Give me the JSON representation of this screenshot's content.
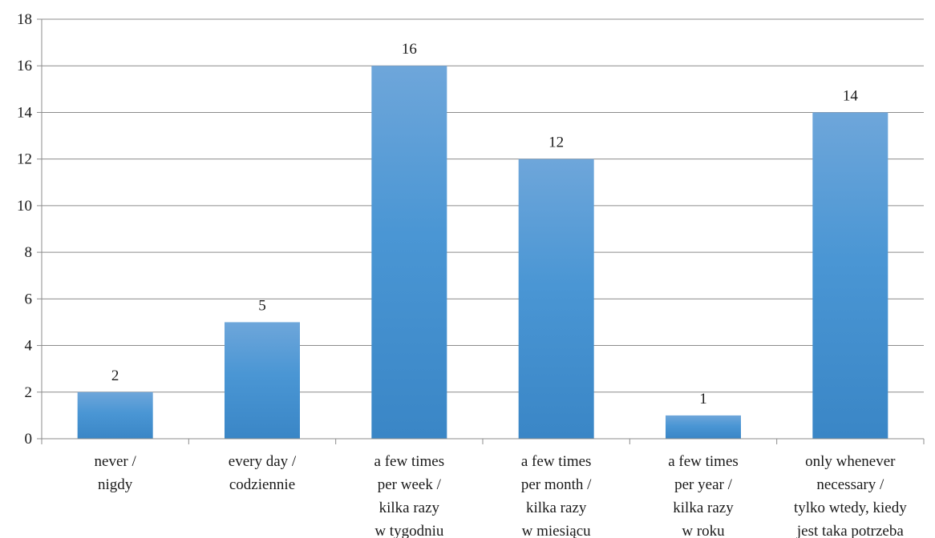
{
  "chart_data": {
    "type": "bar",
    "categories": [
      [
        "never /",
        "nigdy"
      ],
      [
        "every day /",
        "codziennie"
      ],
      [
        "a few times",
        "per week /",
        "kilka razy",
        "w tygodniu"
      ],
      [
        "a few times",
        "per month /",
        "kilka razy",
        "w miesiącu"
      ],
      [
        "a few times",
        "per year /",
        "kilka razy",
        "w roku"
      ],
      [
        "only whenever",
        "necessary /",
        "tylko wtedy, kiedy",
        "jest taka potrzeba"
      ]
    ],
    "values": [
      2,
      5,
      16,
      12,
      1,
      14
    ],
    "data_labels": [
      "2",
      "5",
      "16",
      "12",
      "1",
      "14"
    ],
    "ylim": [
      0,
      18
    ],
    "yticks": [
      0,
      2,
      4,
      6,
      8,
      10,
      12,
      14,
      16,
      18
    ],
    "grid": true,
    "title": "",
    "xlabel": "",
    "ylabel": "",
    "colors": {
      "bar_top": "#6ea6da",
      "bar_mid": "#4a96d4",
      "bar_bottom": "#3a86c6",
      "grid": "#8c8c8c"
    }
  }
}
